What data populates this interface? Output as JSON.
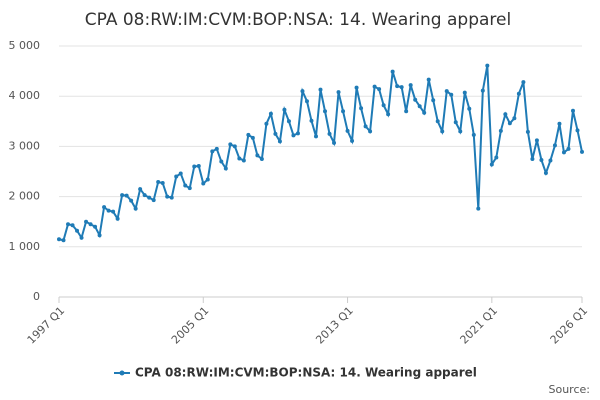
{
  "chart_data": {
    "type": "line",
    "title": "CPA 08:RW:IM:CVM:BOP:NSA: 14. Wearing apparel",
    "source": "Source:",
    "categories": [
      "1997 Q1",
      null,
      null,
      null,
      null,
      null,
      null,
      null,
      null,
      null,
      null,
      null,
      null,
      null,
      null,
      null,
      null,
      null,
      null,
      null,
      null,
      null,
      null,
      null,
      null,
      null,
      null,
      null,
      null,
      null,
      null,
      null,
      "2005 Q1",
      null,
      null,
      null,
      null,
      null,
      null,
      null,
      null,
      null,
      null,
      null,
      null,
      null,
      null,
      null,
      null,
      null,
      null,
      null,
      null,
      null,
      null,
      null,
      null,
      null,
      null,
      null,
      null,
      null,
      null,
      null,
      "2013 Q1",
      null,
      null,
      null,
      null,
      null,
      null,
      null,
      null,
      null,
      null,
      null,
      null,
      null,
      null,
      null,
      null,
      null,
      null,
      null,
      null,
      null,
      null,
      null,
      null,
      null,
      null,
      null,
      null,
      null,
      null,
      null,
      "2021 Q1",
      null,
      null,
      null,
      null,
      null,
      null,
      null,
      null,
      null,
      null,
      null,
      null,
      null,
      null,
      null,
      null,
      null,
      null,
      null,
      "2026 Q1"
    ],
    "series": [
      {
        "name": "CPA 08:RW:IM:CVM:BOP:NSA: 14. Wearing apparel",
        "color": "#1f7bb6",
        "values": [
          1150,
          1130,
          1450,
          1430,
          1320,
          1180,
          1500,
          1450,
          1400,
          1230,
          1790,
          1720,
          1700,
          1560,
          2030,
          2020,
          1920,
          1760,
          2150,
          2030,
          1980,
          1930,
          2290,
          2270,
          2000,
          1980,
          2400,
          2460,
          2220,
          2170,
          2600,
          2610,
          2260,
          2340,
          2900,
          2950,
          2700,
          2560,
          3040,
          3000,
          2760,
          2720,
          3230,
          3170,
          2820,
          2750,
          3450,
          3650,
          3250,
          3100,
          3730,
          3500,
          3220,
          3260,
          4100,
          3900,
          3510,
          3200,
          4130,
          3700,
          3250,
          3070,
          4080,
          3700,
          3310,
          3110,
          4170,
          3760,
          3400,
          3300,
          4190,
          4140,
          3820,
          3640,
          4490,
          4200,
          4180,
          3700,
          4220,
          3930,
          3800,
          3670,
          4330,
          3920,
          3500,
          3300,
          4100,
          4030,
          3480,
          3300,
          4070,
          3750,
          3230,
          1760,
          4110,
          4610,
          2640,
          2780,
          3310,
          3640,
          3460,
          3560,
          4050,
          4280,
          3290,
          2750,
          3120,
          2730,
          2470,
          2720,
          3020,
          3450,
          2880,
          2950,
          3710,
          3320,
          2890
        ]
      }
    ],
    "ylim": [
      0,
      5000
    ],
    "yticks": [
      0,
      {
        "value": 1000,
        "label": "1 000"
      },
      {
        "value": 2000,
        "label": "2 000"
      },
      {
        "value": 3000,
        "label": "3 000"
      },
      {
        "value": 4000,
        "label": "4 000"
      },
      {
        "value": 5000,
        "label": "5 000"
      }
    ],
    "grid": true
  }
}
